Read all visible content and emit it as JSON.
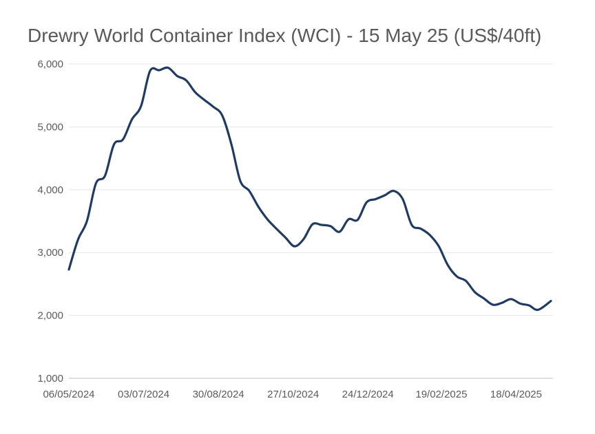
{
  "chart_data": {
    "type": "line",
    "title": "Drewry World Container Index (WCI) - 15 May 25 (US$/40ft)",
    "xlabel": "",
    "ylabel": "",
    "ylim": [
      1000,
      6000
    ],
    "y_ticks": [
      "6,000",
      "5,000",
      "4,000",
      "3,000",
      "2,000",
      "1,000"
    ],
    "y_tick_values": [
      6000,
      5000,
      4000,
      3000,
      2000,
      1000
    ],
    "x_ticks": [
      "06/05/2024",
      "03/07/2024",
      "30/08/2024",
      "27/10/2024",
      "24/12/2024",
      "19/02/2025",
      "18/04/2025"
    ],
    "x_range": [
      "2024-05-06",
      "2025-05-15"
    ],
    "grid": true,
    "legend": "none",
    "line_color": "#1f3b64",
    "series": [
      {
        "x": [
          "2024-05-06",
          "2024-05-13",
          "2024-05-20",
          "2024-05-27",
          "2024-06-03",
          "2024-06-10",
          "2024-06-17",
          "2024-06-24",
          "2024-07-01",
          "2024-07-08",
          "2024-07-15",
          "2024-07-22",
          "2024-07-29",
          "2024-08-05",
          "2024-08-12",
          "2024-08-19",
          "2024-08-26",
          "2024-09-02",
          "2024-09-09",
          "2024-09-16",
          "2024-09-23",
          "2024-09-30",
          "2024-10-07",
          "2024-10-14",
          "2024-10-21",
          "2024-10-28",
          "2024-11-04",
          "2024-11-11",
          "2024-11-18",
          "2024-11-25",
          "2024-12-02",
          "2024-12-09",
          "2024-12-16",
          "2024-12-23",
          "2024-12-30",
          "2025-01-06",
          "2025-01-13",
          "2025-01-20",
          "2025-01-27",
          "2025-02-03",
          "2025-02-10",
          "2025-02-17",
          "2025-02-24",
          "2025-03-03",
          "2025-03-10",
          "2025-03-17",
          "2025-03-24",
          "2025-03-31",
          "2025-04-07",
          "2025-04-14",
          "2025-04-21",
          "2025-04-28",
          "2025-05-05",
          "2025-05-15"
        ],
        "values": [
          2730,
          3200,
          3500,
          4100,
          4220,
          4720,
          4800,
          5120,
          5330,
          5890,
          5900,
          5940,
          5810,
          5740,
          5550,
          5430,
          5320,
          5180,
          4730,
          4140,
          3980,
          3730,
          3530,
          3380,
          3240,
          3100,
          3210,
          3450,
          3440,
          3420,
          3330,
          3530,
          3520,
          3800,
          3850,
          3910,
          3980,
          3850,
          3440,
          3380,
          3280,
          3100,
          2800,
          2620,
          2550,
          2370,
          2270,
          2170,
          2200,
          2260,
          2190,
          2160,
          2090,
          2230
        ]
      }
    ]
  }
}
